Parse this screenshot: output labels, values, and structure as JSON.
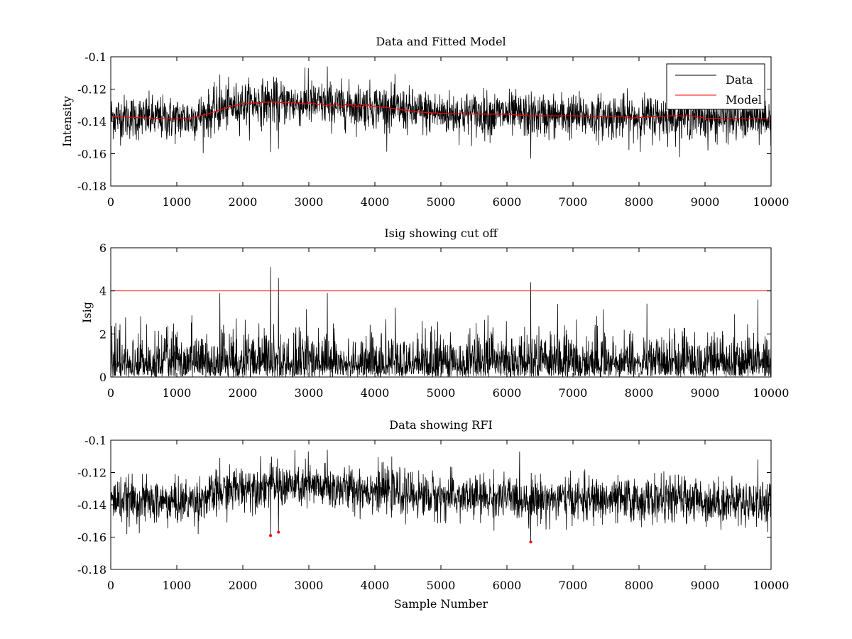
{
  "chart_data": [
    {
      "type": "line",
      "title": "Data and Fitted Model",
      "xlabel": "",
      "ylabel": "Intensity",
      "xlim": [
        0,
        10000
      ],
      "ylim": [
        -0.18,
        -0.1
      ],
      "x_ticks": [
        "0",
        "1000",
        "2000",
        "3000",
        "4000",
        "5000",
        "6000",
        "7000",
        "8000",
        "9000",
        "10000"
      ],
      "y_ticks": [
        "-0.18",
        "-0.16",
        "-0.14",
        "-0.12",
        "-0.1"
      ],
      "y_tick_values": [
        -0.18,
        -0.16,
        -0.14,
        -0.12,
        -0.1
      ],
      "legend": {
        "placement": "top-right",
        "entries": [
          "Data",
          "Model"
        ]
      },
      "series": [
        {
          "name": "Data",
          "color": "#000000",
          "kind": "noise",
          "noise_sd": 0.0068,
          "baseline_from": "Model",
          "spikes": [
            {
              "x": 1650,
              "y": -0.111
            },
            {
              "x": 2420,
              "y": -0.159
            },
            {
              "x": 2540,
              "y": -0.157
            },
            {
              "x": 2990,
              "y": -0.107
            },
            {
              "x": 3280,
              "y": -0.106
            },
            {
              "x": 6360,
              "y": -0.163
            },
            {
              "x": 9800,
              "y": -0.112
            }
          ]
        },
        {
          "name": "Model",
          "color": "#ff0000",
          "kind": "curve",
          "x": [
            0,
            1000,
            1200,
            1500,
            1800,
            2000,
            2400,
            2700,
            3000,
            3500,
            4000,
            4200,
            4600,
            5000,
            5500,
            6000,
            6300,
            7000,
            7500,
            8000,
            8500,
            8800,
            9000,
            10000
          ],
          "y": [
            -0.137,
            -0.1385,
            -0.138,
            -0.135,
            -0.131,
            -0.129,
            -0.128,
            -0.1285,
            -0.129,
            -0.13,
            -0.1305,
            -0.1315,
            -0.134,
            -0.135,
            -0.1355,
            -0.1355,
            -0.1365,
            -0.1365,
            -0.137,
            -0.1375,
            -0.1365,
            -0.1365,
            -0.138,
            -0.1385
          ]
        }
      ]
    },
    {
      "type": "line",
      "title": "Isig showing cut off",
      "xlabel": "",
      "ylabel": "Isig",
      "xlim": [
        0,
        10000
      ],
      "ylim": [
        0,
        6
      ],
      "x_ticks": [
        "0",
        "1000",
        "2000",
        "3000",
        "4000",
        "5000",
        "6000",
        "7000",
        "8000",
        "9000",
        "10000"
      ],
      "y_ticks": [
        "0",
        "2",
        "4",
        "6"
      ],
      "y_tick_values": [
        0,
        2,
        4,
        6
      ],
      "cutoff": 4,
      "series": [
        {
          "color": "#000000",
          "kind": "abs-noise",
          "spikes": [
            {
              "x": 2420,
              "y": 5.1
            },
            {
              "x": 2540,
              "y": 4.6
            },
            {
              "x": 6360,
              "y": 4.4
            },
            {
              "x": 9800,
              "y": 3.6
            },
            {
              "x": 1650,
              "y": 3.9
            },
            {
              "x": 3280,
              "y": 3.9
            }
          ]
        },
        {
          "color": "#ff0000",
          "kind": "hline",
          "y": 4
        }
      ]
    },
    {
      "type": "line",
      "title": "Data showing RFI",
      "xlabel": "Sample Number",
      "ylabel": "",
      "xlim": [
        0,
        10000
      ],
      "ylim": [
        -0.18,
        -0.1
      ],
      "x_ticks": [
        "0",
        "1000",
        "2000",
        "3000",
        "4000",
        "5000",
        "6000",
        "7000",
        "8000",
        "9000",
        "10000"
      ],
      "y_ticks": [
        "-0.18",
        "-0.16",
        "-0.14",
        "-0.12",
        "-0.1"
      ],
      "y_tick_values": [
        -0.18,
        -0.16,
        -0.14,
        -0.12,
        -0.1
      ],
      "series": [
        {
          "color": "#000000",
          "kind": "noise",
          "noise_sd": 0.0068,
          "baseline_from": "Model"
        }
      ],
      "rfi_points": [
        {
          "x": 2420,
          "y": -0.159
        },
        {
          "x": 2540,
          "y": -0.157
        },
        {
          "x": 6360,
          "y": -0.163
        }
      ],
      "rfi_color": "#ff0000"
    }
  ]
}
